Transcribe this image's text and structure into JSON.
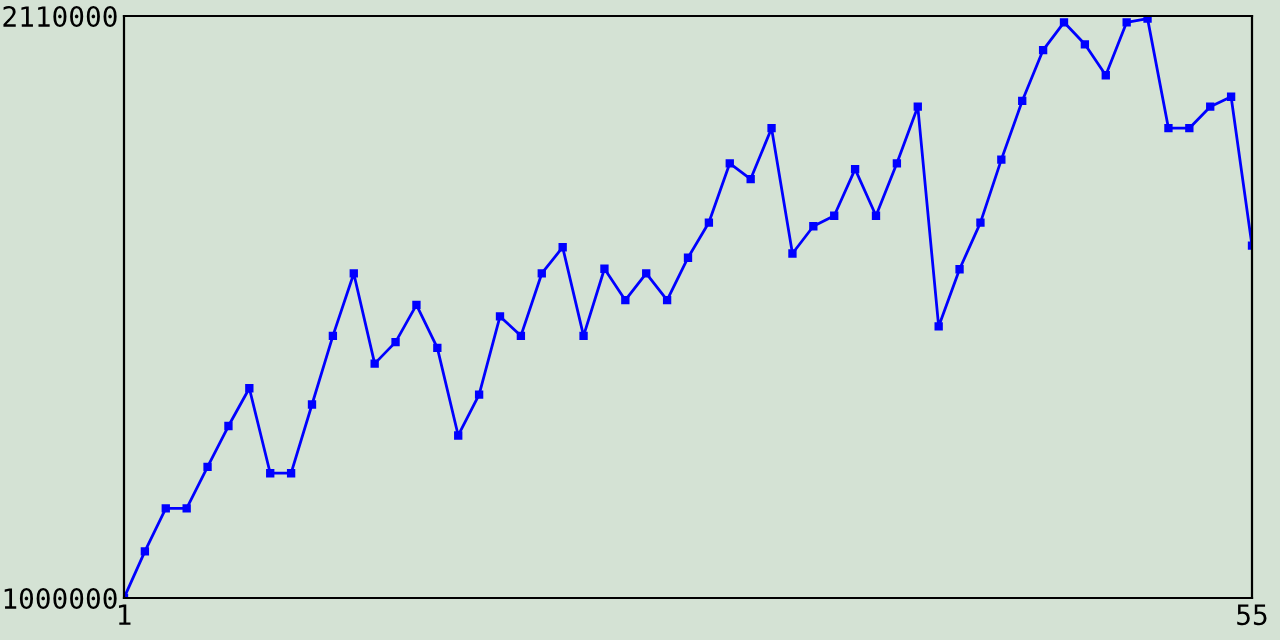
{
  "chart_data": {
    "type": "line",
    "x": [
      1,
      2,
      3,
      4,
      5,
      6,
      7,
      8,
      9,
      10,
      11,
      12,
      13,
      14,
      15,
      16,
      17,
      18,
      19,
      20,
      21,
      22,
      23,
      24,
      25,
      26,
      27,
      28,
      29,
      30,
      31,
      32,
      33,
      34,
      35,
      36,
      37,
      38,
      39,
      40,
      41,
      42,
      43,
      44,
      45,
      46,
      47,
      48,
      49,
      50,
      51,
      52,
      53,
      54,
      55
    ],
    "series": [
      {
        "color": "#0000ff",
        "values": [
          1000000,
          1089000,
          1171000,
          1171000,
          1250000,
          1328000,
          1400000,
          1238000,
          1238000,
          1369000,
          1500000,
          1619000,
          1447000,
          1488000,
          1559000,
          1477000,
          1310000,
          1388000,
          1537000,
          1500000,
          1619000,
          1669000,
          1500000,
          1628000,
          1568000,
          1619000,
          1568000,
          1649000,
          1716000,
          1829000,
          1799000,
          1896000,
          1657000,
          1709000,
          1729000,
          1818000,
          1729000,
          1829000,
          1937000,
          1518000,
          1627000,
          1716000,
          1836000,
          1948000,
          2045000,
          2098000,
          2056000,
          1997000,
          2098000,
          2105000,
          1896000,
          1896000,
          1937000,
          1956000,
          1672000
        ]
      }
    ],
    "xlim": [
      1,
      55
    ],
    "xticks": [
      1,
      55
    ],
    "ylim": [
      1000000,
      2110000
    ],
    "yticks": [
      1000000,
      2110000
    ],
    "grid": false,
    "marker": "square",
    "line_style": "solid"
  }
}
